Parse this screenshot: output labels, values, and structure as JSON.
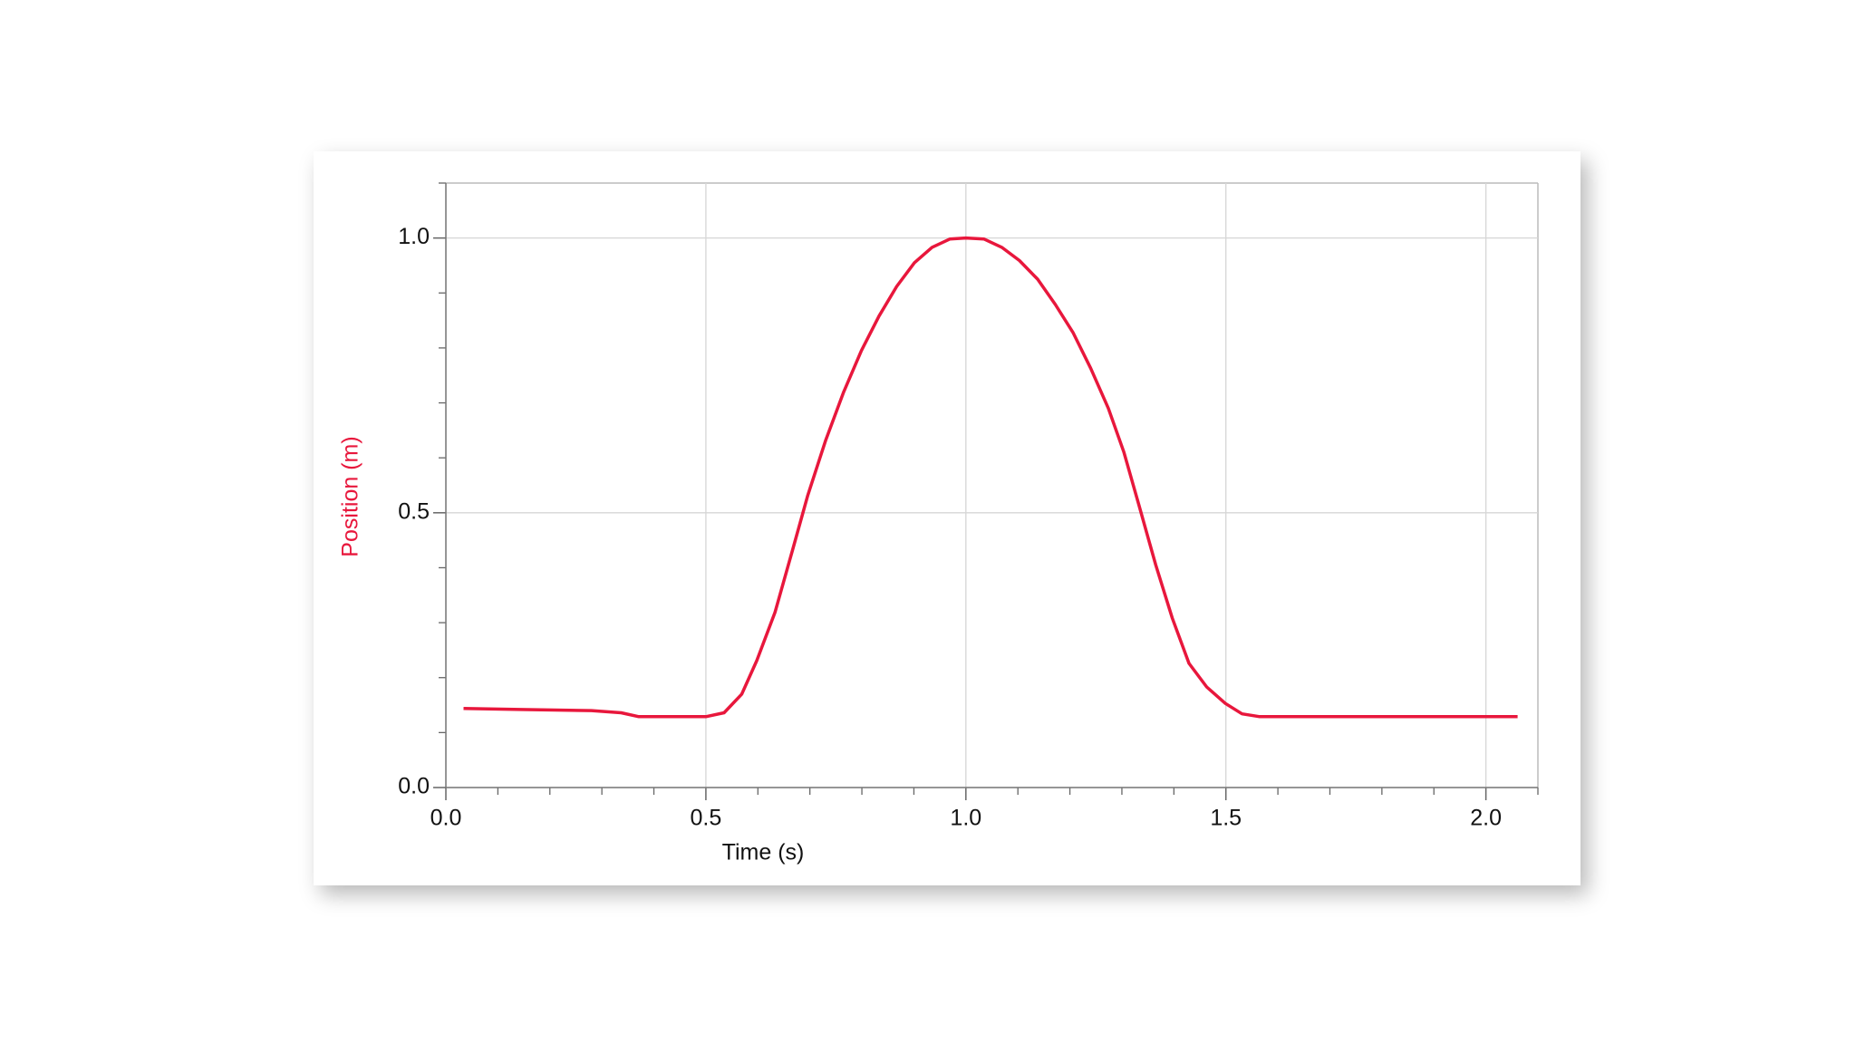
{
  "chart_data": {
    "type": "line",
    "x_label": "Time (s)",
    "y_label": "Position (m)",
    "color": "#e8173c",
    "x": [
      0.034,
      0.143,
      0.28,
      0.337,
      0.371,
      0.5,
      0.535,
      0.569,
      0.598,
      0.633,
      0.667,
      0.696,
      0.73,
      0.765,
      0.799,
      0.833,
      0.867,
      0.901,
      0.935,
      0.969,
      1.0,
      1.035,
      1.069,
      1.103,
      1.138,
      1.172,
      1.206,
      1.24,
      1.274,
      1.304,
      1.333,
      1.365,
      1.397,
      1.429,
      1.463,
      1.499,
      1.531,
      1.565,
      1.759,
      2.061
    ],
    "values": [
      0.144,
      0.142,
      0.14,
      0.136,
      0.129,
      0.129,
      0.136,
      0.17,
      0.231,
      0.319,
      0.433,
      0.532,
      0.631,
      0.72,
      0.795,
      0.858,
      0.912,
      0.955,
      0.983,
      0.998,
      1.0,
      0.998,
      0.983,
      0.959,
      0.925,
      0.879,
      0.828,
      0.763,
      0.69,
      0.61,
      0.513,
      0.405,
      0.308,
      0.226,
      0.183,
      0.153,
      0.134,
      0.129,
      0.129,
      0.129
    ],
    "xlim": [
      0,
      2.1
    ],
    "ylim": [
      0,
      1.1
    ],
    "xticks": [
      {
        "value": 0,
        "label": "0.0"
      },
      0.5,
      {
        "value": 1,
        "label": "1.0"
      },
      1.5,
      {
        "value": 2,
        "label": "2.0"
      }
    ],
    "yticks": [
      {
        "value": 0,
        "label": "0.0"
      },
      0.5,
      {
        "value": 1,
        "label": "1.0"
      }
    ],
    "xminorticks": [
      0.1,
      0.2,
      0.3,
      0.4,
      0.6,
      0.7,
      0.8,
      0.9,
      1.1,
      1.2,
      1.3,
      1.4,
      1.6,
      1.7,
      1.8,
      1.9,
      2.1
    ],
    "yminorticks": [
      0.1,
      0.2,
      0.3,
      0.4,
      0.6,
      0.7,
      0.8,
      0.9,
      1.1
    ],
    "grid": true
  }
}
